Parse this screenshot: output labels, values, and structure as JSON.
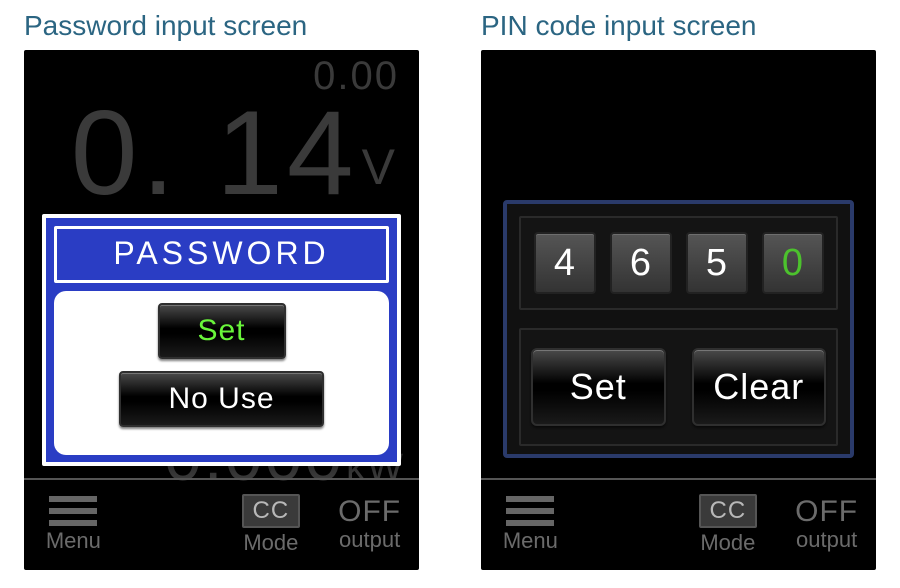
{
  "colors": {
    "page_bg": "#ffffff",
    "device_bg": "#000000",
    "caption_text": "#2b6582",
    "dim_text": "#3a3a3a",
    "bottom_text": "#6b6b6b",
    "dialog_blue": "#2a3dc4",
    "dialog_border_dark": "#2a3a6a",
    "active_green": "#4cc22d",
    "button_text_green": "#69f53a",
    "white": "#ffffff",
    "black": "#000000",
    "pin_box_bg_top": "#555555",
    "pin_box_bg_bottom": "#333333"
  },
  "typography": {
    "caption_fontsize": 28,
    "pw_title_fontsize": 32,
    "button_fontsize": 30,
    "wide_button_fontsize": 36,
    "pin_digit_fontsize": 38,
    "reading_small_fontsize": 40,
    "reading_big_fontsize": 120,
    "bottom_label_fontsize": 22
  },
  "left": {
    "caption": "Password input screen",
    "readings": {
      "top_value": "0.00",
      "main_value": "0. 14",
      "main_unit": "V",
      "kw_value": "0.000",
      "kw_unit": "kW"
    },
    "dialog": {
      "title": "PASSWORD",
      "set_label": "Set",
      "nouse_label": "No  Use"
    }
  },
  "right": {
    "caption": "PIN code input screen",
    "pin": {
      "digits": [
        "4",
        "6",
        "5",
        "0"
      ],
      "active_index": 3,
      "set_label": "Set",
      "clear_label": "Clear"
    }
  },
  "bottombar": {
    "menu_label": "Menu",
    "mode_badge": "CC",
    "mode_label": "Mode",
    "output_state": "OFF",
    "output_label": "output"
  }
}
